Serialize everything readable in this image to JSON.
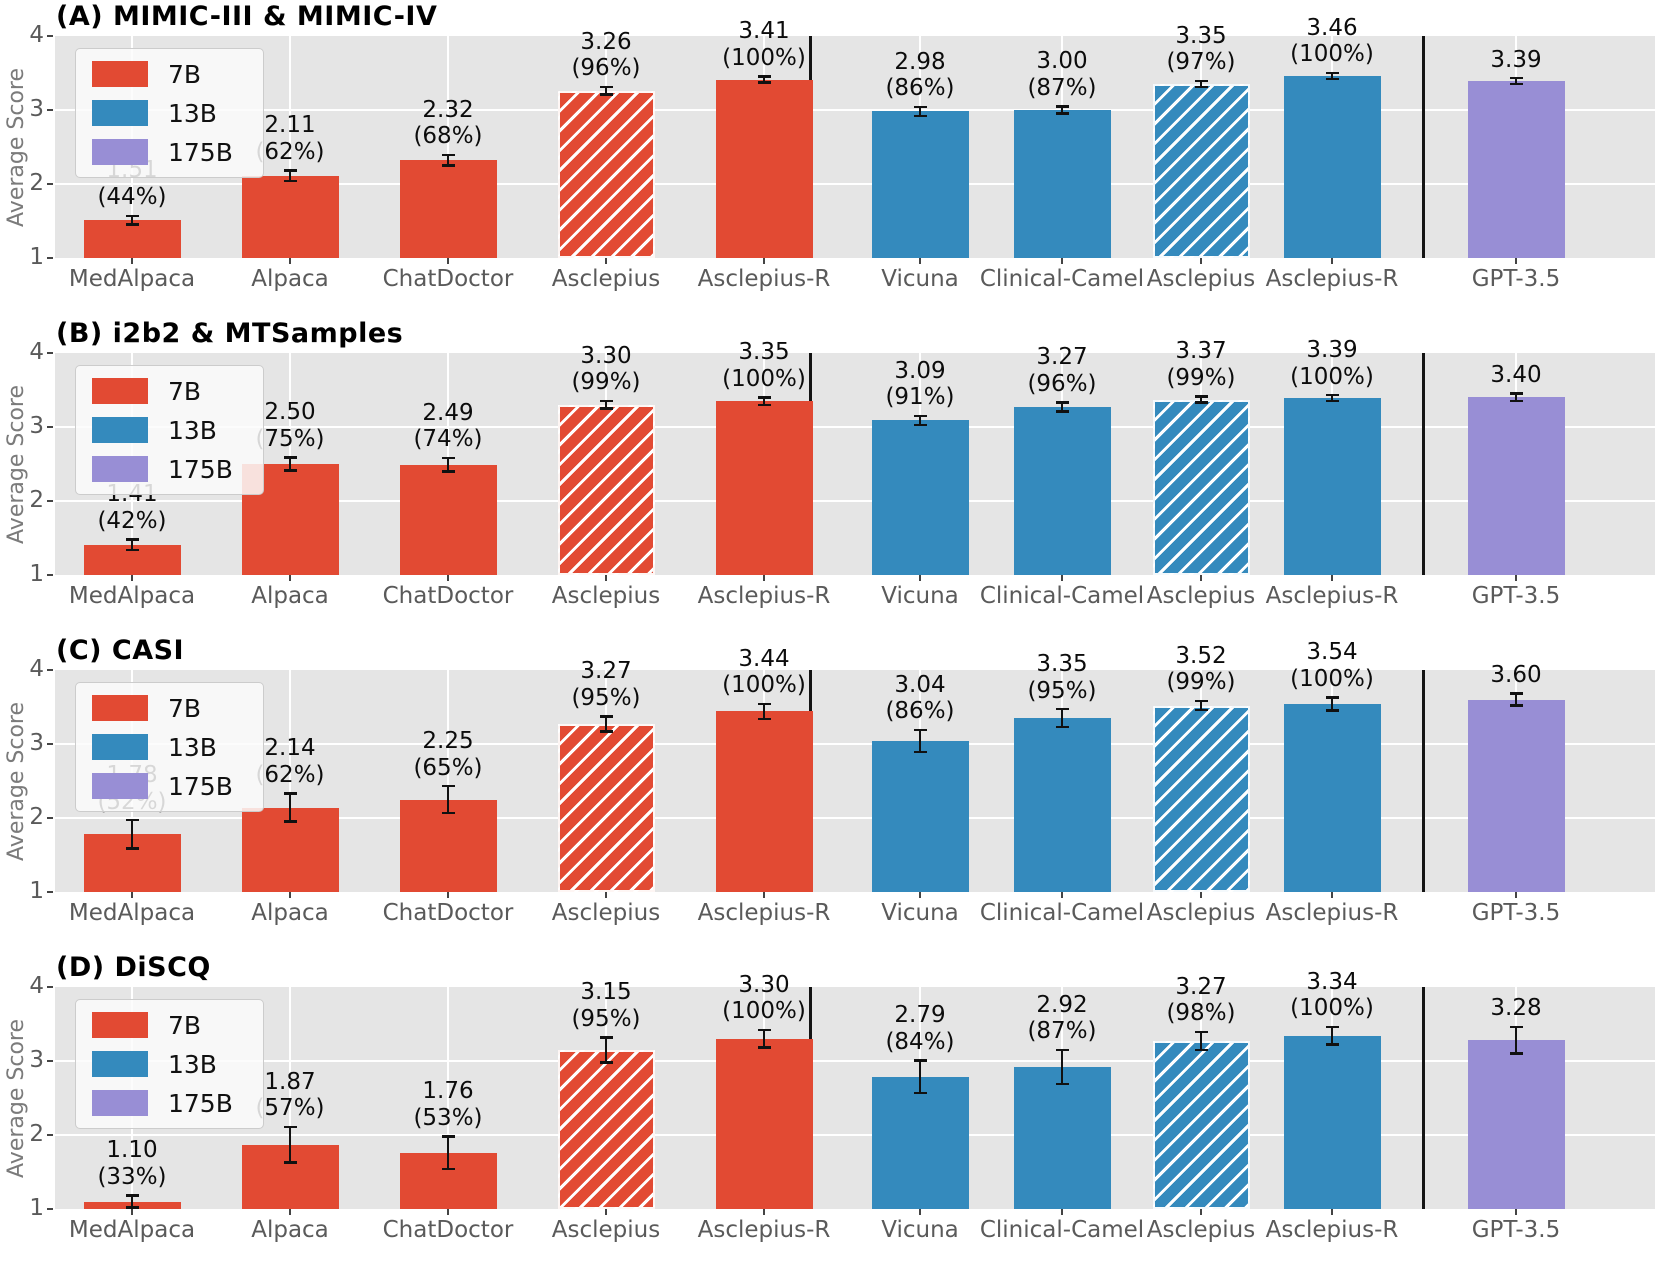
{
  "figure_ylabel": "Average Score",
  "legend": {
    "position": "upper left",
    "items": [
      {
        "label": "7B"
      },
      {
        "label": "13B"
      },
      {
        "label": "175B"
      }
    ]
  },
  "colors": {
    "7B": "#E24A33",
    "13B": "#348ABD",
    "175B": "#988ED5",
    "plot_bg": "#E5E5E5",
    "grid": "#FFFFFF",
    "separator": "#141414",
    "tick_label": "#5a5a5a",
    "axis_label": "#7b7b7b",
    "value_label": "#0c0c0c",
    "error_bar": "#111111"
  },
  "chart_data": [
    {
      "type": "bar",
      "panel": "A",
      "title": "(A) MIMIC-III & MIMIC-IV",
      "ylabel": "Average Score",
      "ylim": [
        1,
        4
      ],
      "yticks": [
        1,
        2,
        3,
        4
      ],
      "grid": true,
      "bars": [
        {
          "label": "MedAlpaca",
          "group": "7B",
          "value": 1.51,
          "pct": 44,
          "err": 0.06,
          "hatch": false
        },
        {
          "label": "Alpaca",
          "group": "7B",
          "value": 2.11,
          "pct": 62,
          "err": 0.07,
          "hatch": false
        },
        {
          "label": "ChatDoctor",
          "group": "7B",
          "value": 2.32,
          "pct": 68,
          "err": 0.07,
          "hatch": false
        },
        {
          "label": "Asclepius",
          "group": "7B",
          "value": 3.26,
          "pct": 96,
          "err": 0.05,
          "hatch": true
        },
        {
          "label": "Asclepius-R",
          "group": "7B",
          "value": 3.41,
          "pct": 100,
          "err": 0.04,
          "hatch": false
        },
        {
          "label": "Vicuna",
          "group": "13B",
          "value": 2.98,
          "pct": 86,
          "err": 0.06,
          "hatch": false
        },
        {
          "label": "Clinical-Camel",
          "group": "13B",
          "value": 3.0,
          "pct": 87,
          "err": 0.05,
          "hatch": false
        },
        {
          "label": "Asclepius",
          "group": "13B",
          "value": 3.35,
          "pct": 97,
          "err": 0.04,
          "hatch": true
        },
        {
          "label": "Asclepius-R",
          "group": "13B",
          "value": 3.46,
          "pct": 100,
          "err": 0.04,
          "hatch": false
        },
        {
          "label": "GPT-3.5",
          "group": "175B",
          "value": 3.39,
          "pct": null,
          "err": 0.04,
          "hatch": false
        }
      ]
    },
    {
      "type": "bar",
      "panel": "B",
      "title": "(B) i2b2 & MTSamples",
      "ylabel": "Average Score",
      "ylim": [
        1,
        4
      ],
      "yticks": [
        1,
        2,
        3,
        4
      ],
      "grid": true,
      "bars": [
        {
          "label": "MedAlpaca",
          "group": "7B",
          "value": 1.41,
          "pct": 42,
          "err": 0.07,
          "hatch": false
        },
        {
          "label": "Alpaca",
          "group": "7B",
          "value": 2.5,
          "pct": 75,
          "err": 0.09,
          "hatch": false
        },
        {
          "label": "ChatDoctor",
          "group": "7B",
          "value": 2.49,
          "pct": 74,
          "err": 0.09,
          "hatch": false
        },
        {
          "label": "Asclepius",
          "group": "7B",
          "value": 3.3,
          "pct": 99,
          "err": 0.05,
          "hatch": true
        },
        {
          "label": "Asclepius-R",
          "group": "7B",
          "value": 3.35,
          "pct": 100,
          "err": 0.05,
          "hatch": false
        },
        {
          "label": "Vicuna",
          "group": "13B",
          "value": 3.09,
          "pct": 91,
          "err": 0.06,
          "hatch": false
        },
        {
          "label": "Clinical-Camel",
          "group": "13B",
          "value": 3.27,
          "pct": 96,
          "err": 0.06,
          "hatch": false
        },
        {
          "label": "Asclepius",
          "group": "13B",
          "value": 3.37,
          "pct": 99,
          "err": 0.04,
          "hatch": true
        },
        {
          "label": "Asclepius-R",
          "group": "13B",
          "value": 3.39,
          "pct": 100,
          "err": 0.04,
          "hatch": false
        },
        {
          "label": "GPT-3.5",
          "group": "175B",
          "value": 3.4,
          "pct": null,
          "err": 0.05,
          "hatch": false
        }
      ]
    },
    {
      "type": "bar",
      "panel": "C",
      "title": "(C) CASI",
      "ylabel": "Average Score",
      "ylim": [
        1,
        4
      ],
      "yticks": [
        1,
        2,
        3,
        4
      ],
      "grid": true,
      "bars": [
        {
          "label": "MedAlpaca",
          "group": "7B",
          "value": 1.78,
          "pct": 52,
          "err": 0.19,
          "hatch": false
        },
        {
          "label": "Alpaca",
          "group": "7B",
          "value": 2.14,
          "pct": 62,
          "err": 0.19,
          "hatch": false
        },
        {
          "label": "ChatDoctor",
          "group": "7B",
          "value": 2.25,
          "pct": 65,
          "err": 0.18,
          "hatch": false
        },
        {
          "label": "Asclepius",
          "group": "7B",
          "value": 3.27,
          "pct": 95,
          "err": 0.1,
          "hatch": true
        },
        {
          "label": "Asclepius-R",
          "group": "7B",
          "value": 3.44,
          "pct": 100,
          "err": 0.1,
          "hatch": false
        },
        {
          "label": "Vicuna",
          "group": "13B",
          "value": 3.04,
          "pct": 86,
          "err": 0.15,
          "hatch": false
        },
        {
          "label": "Clinical-Camel",
          "group": "13B",
          "value": 3.35,
          "pct": 95,
          "err": 0.12,
          "hatch": false
        },
        {
          "label": "Asclepius",
          "group": "13B",
          "value": 3.52,
          "pct": 99,
          "err": 0.06,
          "hatch": true
        },
        {
          "label": "Asclepius-R",
          "group": "13B",
          "value": 3.54,
          "pct": 100,
          "err": 0.09,
          "hatch": false
        },
        {
          "label": "GPT-3.5",
          "group": "175B",
          "value": 3.6,
          "pct": null,
          "err": 0.08,
          "hatch": false
        }
      ]
    },
    {
      "type": "bar",
      "panel": "D",
      "title": "(D) DiSCQ",
      "ylabel": "Average Score",
      "ylim": [
        1,
        4
      ],
      "yticks": [
        1,
        2,
        3,
        4
      ],
      "grid": true,
      "bars": [
        {
          "label": "MedAlpaca",
          "group": "7B",
          "value": 1.1,
          "pct": 33,
          "err": 0.08,
          "hatch": false
        },
        {
          "label": "Alpaca",
          "group": "7B",
          "value": 1.87,
          "pct": 57,
          "err": 0.24,
          "hatch": false
        },
        {
          "label": "ChatDoctor",
          "group": "7B",
          "value": 1.76,
          "pct": 53,
          "err": 0.22,
          "hatch": false
        },
        {
          "label": "Asclepius",
          "group": "7B",
          "value": 3.15,
          "pct": 95,
          "err": 0.17,
          "hatch": true
        },
        {
          "label": "Asclepius-R",
          "group": "7B",
          "value": 3.3,
          "pct": 100,
          "err": 0.12,
          "hatch": false
        },
        {
          "label": "Vicuna",
          "group": "13B",
          "value": 2.79,
          "pct": 84,
          "err": 0.22,
          "hatch": false
        },
        {
          "label": "Clinical-Camel",
          "group": "13B",
          "value": 2.92,
          "pct": 87,
          "err": 0.23,
          "hatch": false
        },
        {
          "label": "Asclepius",
          "group": "13B",
          "value": 3.27,
          "pct": 98,
          "err": 0.12,
          "hatch": true
        },
        {
          "label": "Asclepius-R",
          "group": "13B",
          "value": 3.34,
          "pct": 100,
          "err": 0.12,
          "hatch": false
        },
        {
          "label": "GPT-3.5",
          "group": "175B",
          "value": 3.28,
          "pct": null,
          "err": 0.18,
          "hatch": false
        }
      ]
    }
  ]
}
